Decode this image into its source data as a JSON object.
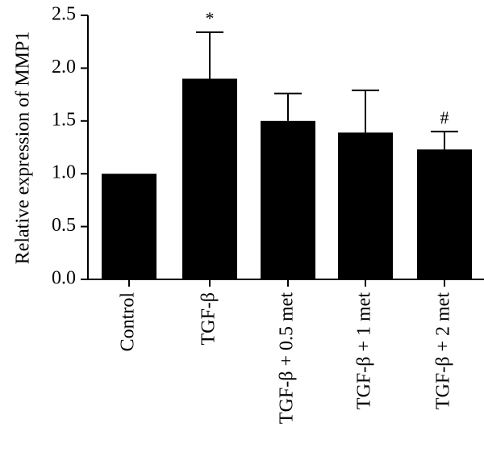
{
  "chart_data": {
    "type": "bar",
    "categories": [
      "Control",
      "TGF-β",
      "TGF-β + 0.5 met",
      "TGF-β + 1 met",
      "TGF-β + 2 met"
    ],
    "values": [
      1.0,
      1.9,
      1.5,
      1.39,
      1.23
    ],
    "error_upper": [
      0.0,
      0.44,
      0.26,
      0.4,
      0.17
    ],
    "annotations": [
      "",
      "*",
      "",
      "",
      "#"
    ],
    "title": "",
    "xlabel": "",
    "ylabel": "Relative expression of MMP1",
    "ylim": [
      0,
      2.5
    ],
    "yticks": [
      0.0,
      0.5,
      1.0,
      1.5,
      2.0,
      2.5
    ],
    "ytick_labels": [
      "0.0",
      "0.5",
      "1.0",
      "1.5",
      "2.0",
      "2.5"
    ],
    "bar_color": "#000000",
    "grid": false,
    "legend": "none"
  }
}
